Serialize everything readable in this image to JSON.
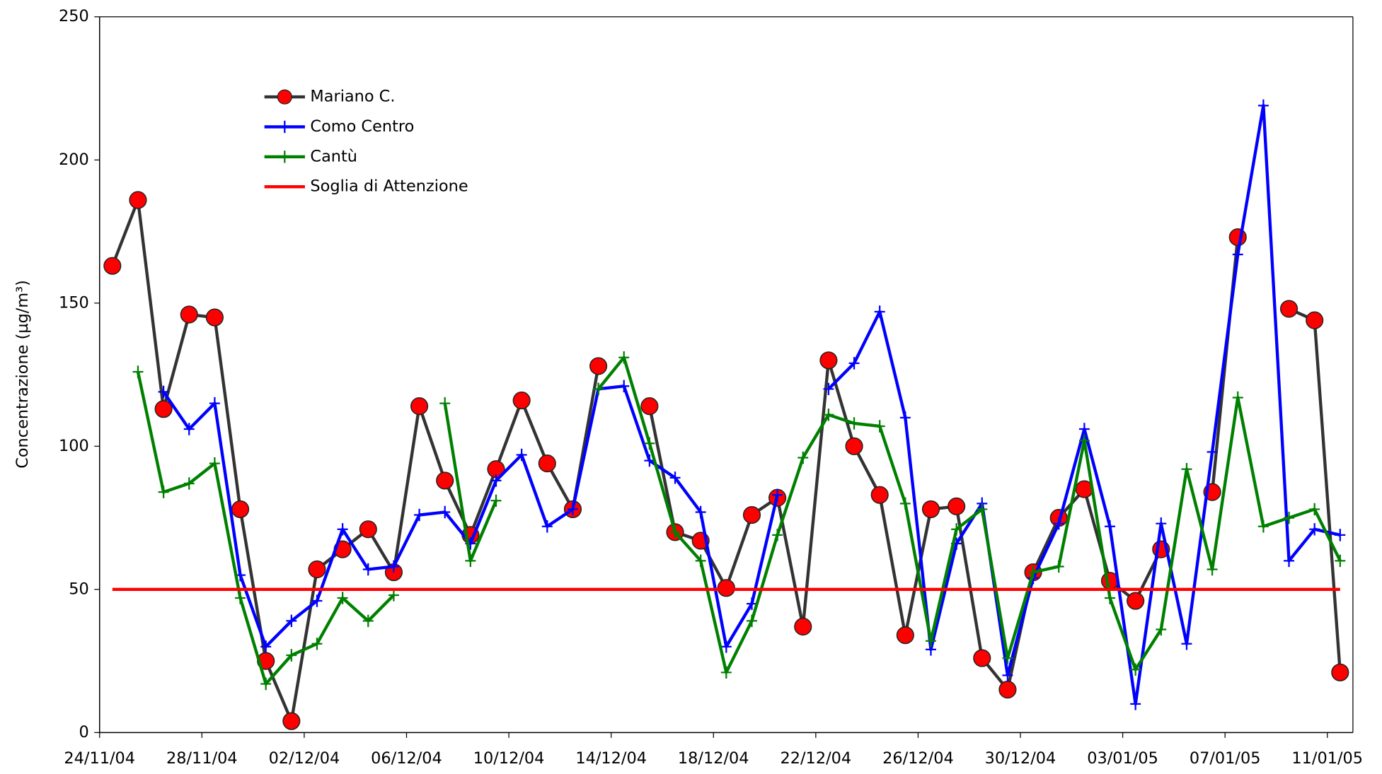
{
  "chart_data": {
    "type": "line",
    "y_label": "Concentrazione (µg/m³)",
    "categories": [
      "24/11/04",
      null,
      null,
      null,
      "28/11/04",
      null,
      null,
      null,
      "02/12/04",
      null,
      null,
      null,
      "06/12/04",
      null,
      null,
      null,
      "10/12/04",
      null,
      null,
      null,
      "14/12/04",
      null,
      null,
      null,
      "18/12/04",
      null,
      null,
      null,
      "22/12/04",
      null,
      null,
      null,
      "26/12/04",
      null,
      null,
      null,
      "30/12/04",
      null,
      null,
      null,
      "03/01/05",
      null,
      null,
      null,
      "07/01/05",
      null,
      null,
      null,
      "11/01/05"
    ],
    "series": [
      {
        "name": "Mariano C.",
        "color": "#333333",
        "marker": "circle",
        "marker_color": "#ff0000",
        "values": [
          163,
          186,
          113,
          146,
          145,
          78,
          25,
          4,
          57,
          64,
          71,
          56,
          114,
          88,
          69,
          92,
          116,
          94,
          78,
          128,
          null,
          114,
          70,
          67,
          50.5,
          76,
          82,
          37,
          130,
          100,
          83,
          34,
          78,
          79,
          26,
          15,
          56,
          75,
          85,
          53,
          46,
          64,
          null,
          84,
          173,
          null,
          148,
          144,
          21
        ]
      },
      {
        "name": "Como Centro",
        "color": "#0000ff",
        "marker": "plus",
        "marker_color": "#0000ff",
        "values": [
          null,
          null,
          119,
          106,
          115,
          55,
          30,
          39,
          46,
          71,
          57,
          58,
          76,
          77,
          66,
          88,
          97,
          72,
          78,
          120,
          121,
          95,
          89,
          77,
          30,
          45,
          83,
          null,
          120,
          129,
          147,
          110,
          29,
          66,
          80,
          20,
          54,
          73,
          106,
          72,
          10,
          73,
          31,
          98,
          167,
          219,
          60,
          71,
          69
        ]
      },
      {
        "name": "Cantù",
        "color": "#008000",
        "marker": "plus",
        "marker_color": "#008000",
        "values": [
          null,
          126,
          84,
          87,
          94,
          47,
          17,
          27,
          31,
          47,
          39,
          48,
          null,
          115,
          60,
          81,
          null,
          null,
          null,
          120,
          131,
          101,
          70,
          60,
          21,
          39,
          69,
          96,
          111,
          108,
          107,
          80,
          32,
          71,
          78,
          26,
          56,
          58,
          102,
          47,
          22,
          36,
          92,
          57,
          117,
          72,
          75,
          78,
          60
        ]
      },
      {
        "name": "Soglia di Attenzione",
        "color": "#ff0000",
        "marker": "none",
        "values": [
          50,
          50,
          50,
          50,
          50,
          50,
          50,
          50,
          50,
          50,
          50,
          50,
          50,
          50,
          50,
          50,
          50,
          50,
          50,
          50,
          50,
          50,
          50,
          50,
          50,
          50,
          50,
          50,
          50,
          50,
          50,
          50,
          50,
          50,
          50,
          50,
          50,
          50,
          50,
          50,
          50,
          50,
          50,
          50,
          50,
          50,
          50,
          50,
          50
        ]
      }
    ],
    "ylim": [
      0,
      250
    ],
    "yticks": [
      0,
      50,
      100,
      150,
      200,
      250
    ],
    "grid": false,
    "legend": "upper left"
  }
}
